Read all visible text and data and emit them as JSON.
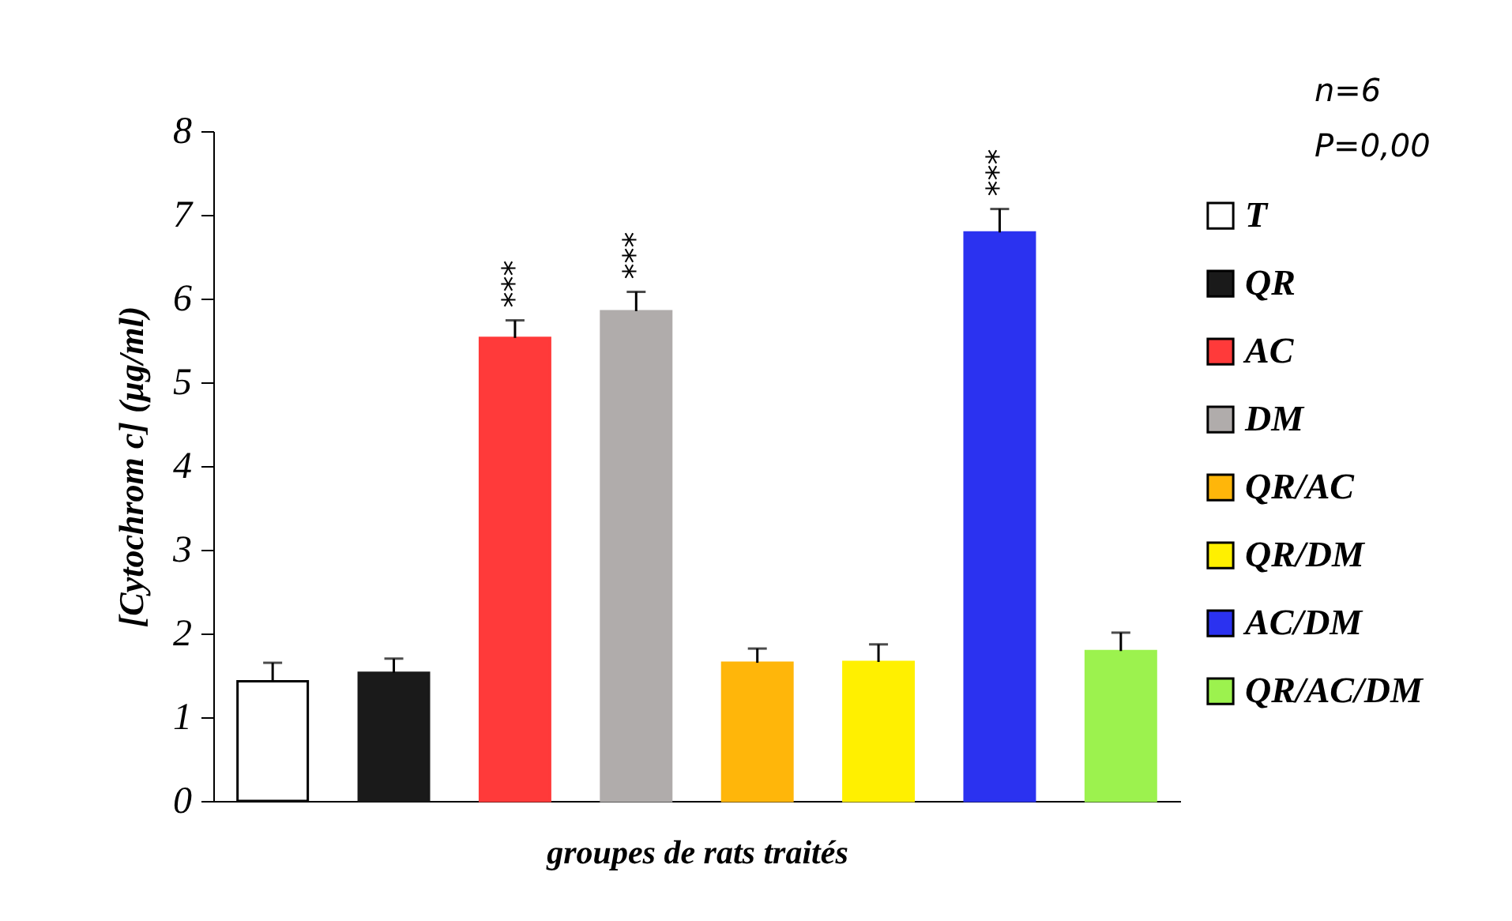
{
  "chart_data": {
    "type": "bar",
    "xlabel": "groupes de rats traités",
    "ylabel": "[Cytochrom c] (µg/ml)",
    "categories": [
      null,
      null,
      null,
      null,
      null,
      null,
      null,
      null
    ],
    "series": [
      {
        "name": "T",
        "color": "#ffffff",
        "values": [
          1.43,
          null,
          null,
          null,
          null,
          null,
          null,
          null
        ],
        "errors": [
          [
            1.43,
            1.65
          ],
          null,
          null,
          null,
          null,
          null,
          null,
          null
        ]
      },
      {
        "name": "QR",
        "color": "#1a1a1a",
        "values": [
          null,
          1.53,
          null,
          null,
          null,
          null,
          null,
          null
        ],
        "errors": [
          null,
          [
            1.53,
            1.7
          ],
          null,
          null,
          null,
          null,
          null,
          null
        ]
      },
      {
        "name": "AC",
        "color": "#ff3a3a",
        "values": [
          null,
          null,
          5.53,
          null,
          null,
          null,
          null,
          null
        ],
        "errors": [
          null,
          null,
          [
            5.53,
            5.74
          ],
          null,
          null,
          null,
          null,
          null
        ]
      },
      {
        "name": "DM",
        "color": "#b0acab",
        "values": [
          null,
          null,
          null,
          5.85,
          null,
          null,
          null,
          null
        ],
        "errors": [
          null,
          null,
          null,
          [
            5.85,
            6.08
          ],
          null,
          null,
          null,
          null
        ]
      },
      {
        "name": "QR/AC",
        "color": "#ffb60a",
        "values": [
          null,
          null,
          null,
          null,
          1.65,
          null,
          null,
          null
        ],
        "errors": [
          null,
          null,
          null,
          null,
          [
            1.65,
            1.82
          ],
          null,
          null,
          null
        ]
      },
      {
        "name": "QR/DM",
        "color": "#fff000",
        "values": [
          null,
          null,
          null,
          null,
          null,
          1.66,
          null,
          null
        ],
        "errors": [
          null,
          null,
          null,
          null,
          null,
          [
            1.66,
            1.87
          ],
          null,
          null
        ]
      },
      {
        "name": "AC/DM",
        "color": "#2b32f0",
        "values": [
          null,
          null,
          null,
          null,
          null,
          null,
          6.79,
          null
        ],
        "errors": [
          null,
          null,
          null,
          null,
          null,
          null,
          [
            6.79,
            7.07
          ],
          null
        ]
      },
      {
        "name": "QR/AC/DM",
        "color": "#9cf24e",
        "values": [
          null,
          null,
          null,
          null,
          null,
          null,
          null,
          1.79
        ],
        "errors": [
          null,
          null,
          null,
          null,
          null,
          null,
          null,
          [
            1.79,
            2.01
          ]
        ]
      }
    ],
    "ylim": [
      0,
      8
    ],
    "yticks": [
      0,
      1,
      2,
      3,
      4,
      5,
      6,
      7,
      8
    ],
    "grid": false,
    "legend": "right",
    "tick_labels": "y",
    "annotations": [
      {
        "text": "***",
        "y": 5.74
      },
      {
        "text": "***",
        "y": 6.08
      },
      {
        "text": "***",
        "y": 7.07
      },
      "n=6",
      "P=0,00"
    ]
  }
}
